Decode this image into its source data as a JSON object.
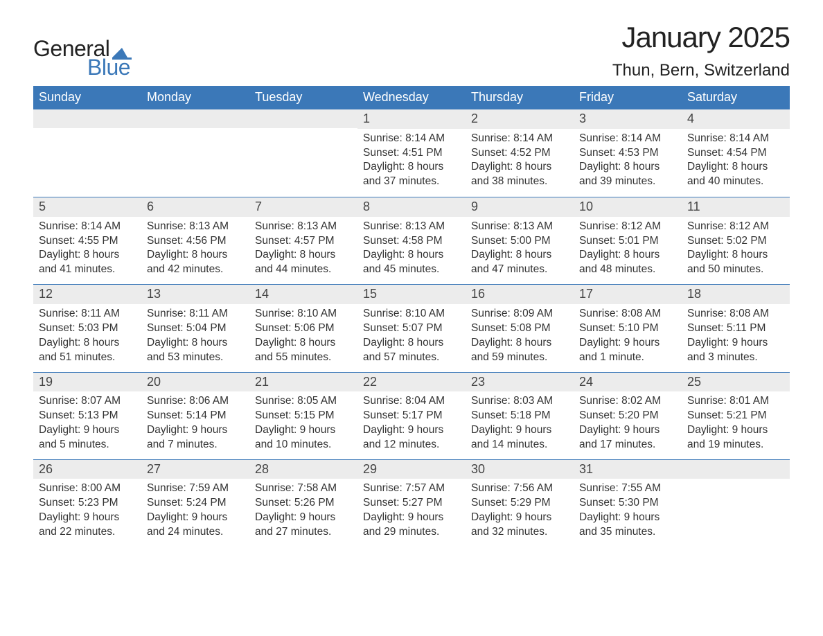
{
  "logo": {
    "word1": "General",
    "word2": "Blue",
    "word1_color": "#222222",
    "word2_color": "#3b78b8",
    "flag_color": "#3b78b8"
  },
  "title": "January 2025",
  "location": "Thun, Bern, Switzerland",
  "colors": {
    "header_bg": "#3b78b8",
    "header_text": "#ffffff",
    "daynum_bg": "#ececec",
    "daynum_text": "#444444",
    "body_text": "#333333",
    "rule": "#3b78b8",
    "page_bg": "#ffffff"
  },
  "typography": {
    "title_fontsize": 42,
    "location_fontsize": 24,
    "weekday_fontsize": 18,
    "daynum_fontsize": 18,
    "body_fontsize": 15.5,
    "font_family": "Arial"
  },
  "weekdays": [
    "Sunday",
    "Monday",
    "Tuesday",
    "Wednesday",
    "Thursday",
    "Friday",
    "Saturday"
  ],
  "weeks": [
    [
      {
        "n": "",
        "sunrise": "",
        "sunset": "",
        "daylight1": "",
        "daylight2": ""
      },
      {
        "n": "",
        "sunrise": "",
        "sunset": "",
        "daylight1": "",
        "daylight2": ""
      },
      {
        "n": "",
        "sunrise": "",
        "sunset": "",
        "daylight1": "",
        "daylight2": ""
      },
      {
        "n": "1",
        "sunrise": "Sunrise: 8:14 AM",
        "sunset": "Sunset: 4:51 PM",
        "daylight1": "Daylight: 8 hours",
        "daylight2": "and 37 minutes."
      },
      {
        "n": "2",
        "sunrise": "Sunrise: 8:14 AM",
        "sunset": "Sunset: 4:52 PM",
        "daylight1": "Daylight: 8 hours",
        "daylight2": "and 38 minutes."
      },
      {
        "n": "3",
        "sunrise": "Sunrise: 8:14 AM",
        "sunset": "Sunset: 4:53 PM",
        "daylight1": "Daylight: 8 hours",
        "daylight2": "and 39 minutes."
      },
      {
        "n": "4",
        "sunrise": "Sunrise: 8:14 AM",
        "sunset": "Sunset: 4:54 PM",
        "daylight1": "Daylight: 8 hours",
        "daylight2": "and 40 minutes."
      }
    ],
    [
      {
        "n": "5",
        "sunrise": "Sunrise: 8:14 AM",
        "sunset": "Sunset: 4:55 PM",
        "daylight1": "Daylight: 8 hours",
        "daylight2": "and 41 minutes."
      },
      {
        "n": "6",
        "sunrise": "Sunrise: 8:13 AM",
        "sunset": "Sunset: 4:56 PM",
        "daylight1": "Daylight: 8 hours",
        "daylight2": "and 42 minutes."
      },
      {
        "n": "7",
        "sunrise": "Sunrise: 8:13 AM",
        "sunset": "Sunset: 4:57 PM",
        "daylight1": "Daylight: 8 hours",
        "daylight2": "and 44 minutes."
      },
      {
        "n": "8",
        "sunrise": "Sunrise: 8:13 AM",
        "sunset": "Sunset: 4:58 PM",
        "daylight1": "Daylight: 8 hours",
        "daylight2": "and 45 minutes."
      },
      {
        "n": "9",
        "sunrise": "Sunrise: 8:13 AM",
        "sunset": "Sunset: 5:00 PM",
        "daylight1": "Daylight: 8 hours",
        "daylight2": "and 47 minutes."
      },
      {
        "n": "10",
        "sunrise": "Sunrise: 8:12 AM",
        "sunset": "Sunset: 5:01 PM",
        "daylight1": "Daylight: 8 hours",
        "daylight2": "and 48 minutes."
      },
      {
        "n": "11",
        "sunrise": "Sunrise: 8:12 AM",
        "sunset": "Sunset: 5:02 PM",
        "daylight1": "Daylight: 8 hours",
        "daylight2": "and 50 minutes."
      }
    ],
    [
      {
        "n": "12",
        "sunrise": "Sunrise: 8:11 AM",
        "sunset": "Sunset: 5:03 PM",
        "daylight1": "Daylight: 8 hours",
        "daylight2": "and 51 minutes."
      },
      {
        "n": "13",
        "sunrise": "Sunrise: 8:11 AM",
        "sunset": "Sunset: 5:04 PM",
        "daylight1": "Daylight: 8 hours",
        "daylight2": "and 53 minutes."
      },
      {
        "n": "14",
        "sunrise": "Sunrise: 8:10 AM",
        "sunset": "Sunset: 5:06 PM",
        "daylight1": "Daylight: 8 hours",
        "daylight2": "and 55 minutes."
      },
      {
        "n": "15",
        "sunrise": "Sunrise: 8:10 AM",
        "sunset": "Sunset: 5:07 PM",
        "daylight1": "Daylight: 8 hours",
        "daylight2": "and 57 minutes."
      },
      {
        "n": "16",
        "sunrise": "Sunrise: 8:09 AM",
        "sunset": "Sunset: 5:08 PM",
        "daylight1": "Daylight: 8 hours",
        "daylight2": "and 59 minutes."
      },
      {
        "n": "17",
        "sunrise": "Sunrise: 8:08 AM",
        "sunset": "Sunset: 5:10 PM",
        "daylight1": "Daylight: 9 hours",
        "daylight2": "and 1 minute."
      },
      {
        "n": "18",
        "sunrise": "Sunrise: 8:08 AM",
        "sunset": "Sunset: 5:11 PM",
        "daylight1": "Daylight: 9 hours",
        "daylight2": "and 3 minutes."
      }
    ],
    [
      {
        "n": "19",
        "sunrise": "Sunrise: 8:07 AM",
        "sunset": "Sunset: 5:13 PM",
        "daylight1": "Daylight: 9 hours",
        "daylight2": "and 5 minutes."
      },
      {
        "n": "20",
        "sunrise": "Sunrise: 8:06 AM",
        "sunset": "Sunset: 5:14 PM",
        "daylight1": "Daylight: 9 hours",
        "daylight2": "and 7 minutes."
      },
      {
        "n": "21",
        "sunrise": "Sunrise: 8:05 AM",
        "sunset": "Sunset: 5:15 PM",
        "daylight1": "Daylight: 9 hours",
        "daylight2": "and 10 minutes."
      },
      {
        "n": "22",
        "sunrise": "Sunrise: 8:04 AM",
        "sunset": "Sunset: 5:17 PM",
        "daylight1": "Daylight: 9 hours",
        "daylight2": "and 12 minutes."
      },
      {
        "n": "23",
        "sunrise": "Sunrise: 8:03 AM",
        "sunset": "Sunset: 5:18 PM",
        "daylight1": "Daylight: 9 hours",
        "daylight2": "and 14 minutes."
      },
      {
        "n": "24",
        "sunrise": "Sunrise: 8:02 AM",
        "sunset": "Sunset: 5:20 PM",
        "daylight1": "Daylight: 9 hours",
        "daylight2": "and 17 minutes."
      },
      {
        "n": "25",
        "sunrise": "Sunrise: 8:01 AM",
        "sunset": "Sunset: 5:21 PM",
        "daylight1": "Daylight: 9 hours",
        "daylight2": "and 19 minutes."
      }
    ],
    [
      {
        "n": "26",
        "sunrise": "Sunrise: 8:00 AM",
        "sunset": "Sunset: 5:23 PM",
        "daylight1": "Daylight: 9 hours",
        "daylight2": "and 22 minutes."
      },
      {
        "n": "27",
        "sunrise": "Sunrise: 7:59 AM",
        "sunset": "Sunset: 5:24 PM",
        "daylight1": "Daylight: 9 hours",
        "daylight2": "and 24 minutes."
      },
      {
        "n": "28",
        "sunrise": "Sunrise: 7:58 AM",
        "sunset": "Sunset: 5:26 PM",
        "daylight1": "Daylight: 9 hours",
        "daylight2": "and 27 minutes."
      },
      {
        "n": "29",
        "sunrise": "Sunrise: 7:57 AM",
        "sunset": "Sunset: 5:27 PM",
        "daylight1": "Daylight: 9 hours",
        "daylight2": "and 29 minutes."
      },
      {
        "n": "30",
        "sunrise": "Sunrise: 7:56 AM",
        "sunset": "Sunset: 5:29 PM",
        "daylight1": "Daylight: 9 hours",
        "daylight2": "and 32 minutes."
      },
      {
        "n": "31",
        "sunrise": "Sunrise: 7:55 AM",
        "sunset": "Sunset: 5:30 PM",
        "daylight1": "Daylight: 9 hours",
        "daylight2": "and 35 minutes."
      },
      {
        "n": "",
        "sunrise": "",
        "sunset": "",
        "daylight1": "",
        "daylight2": ""
      }
    ]
  ]
}
